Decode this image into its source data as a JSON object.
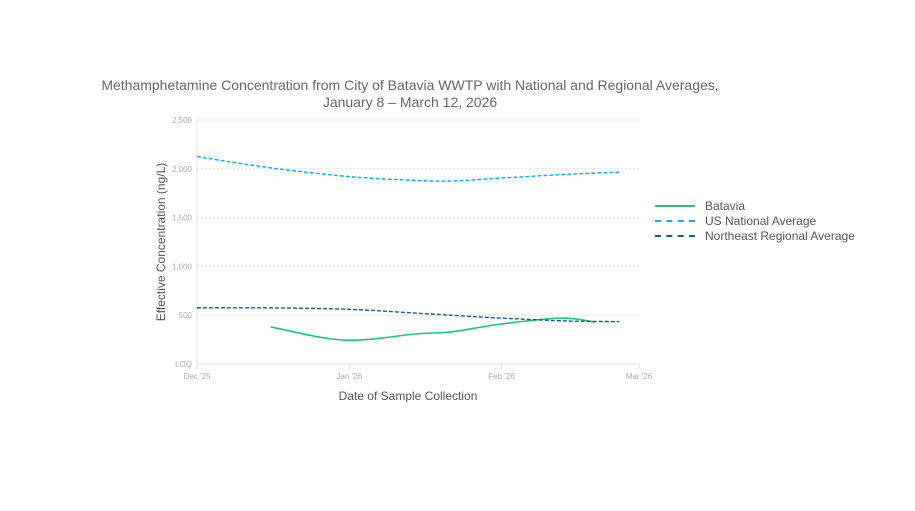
{
  "chart_data": {
    "type": "line",
    "title": "Methamphetamine Concentration from City of Batavia WWTP with National and Regional Averages,",
    "subtitle": "January 8 – March 12, 2026",
    "xlabel": "Date of Sample Collection",
    "ylabel": "Effective Concentration (ng/L)",
    "xlim": [
      "2025-12-01",
      "2026-03-01"
    ],
    "ylim": [
      0,
      2500
    ],
    "x_ticks": [
      {
        "date": "2025-12-01",
        "label": "Dec '25"
      },
      {
        "date": "2026-01-01",
        "label": "Jan '26"
      },
      {
        "date": "2026-02-01",
        "label": "Feb '26"
      },
      {
        "date": "2026-03-01",
        "label": "Mar '26"
      }
    ],
    "y_ticks": [
      {
        "value": 0,
        "label": "LOQ"
      },
      {
        "value": 500,
        "label": "500"
      },
      {
        "value": 1000,
        "label": "1,000"
      },
      {
        "value": 1500,
        "label": "1,500"
      },
      {
        "value": 2000,
        "label": "2,000"
      },
      {
        "value": 2500,
        "label": "2,500"
      }
    ],
    "grid": true,
    "legend_position": "right",
    "series": [
      {
        "name": "Batavia",
        "color": "#1dc47a",
        "style": "solid",
        "x": [
          "2025-12-16",
          "2025-12-31",
          "2026-01-15",
          "2026-01-22",
          "2026-02-01",
          "2026-02-13",
          "2026-02-20"
        ],
        "y": [
          380,
          245,
          310,
          330,
          410,
          470,
          430
        ]
      },
      {
        "name": "US National Average",
        "color": "#1aa3f0",
        "style": "dashed",
        "x": [
          "2025-12-01",
          "2025-12-16",
          "2026-01-01",
          "2026-01-15",
          "2026-01-22",
          "2026-02-01",
          "2026-02-15",
          "2026-02-25"
        ],
        "y": [
          2125,
          2010,
          1920,
          1880,
          1875,
          1905,
          1945,
          1965
        ]
      },
      {
        "name": "Northeast Regional Average",
        "color": "#1b5a8a",
        "style": "dashed",
        "x": [
          "2025-12-01",
          "2025-12-16",
          "2026-01-01",
          "2026-01-15",
          "2026-02-01",
          "2026-02-15",
          "2026-02-25"
        ],
        "y": [
          575,
          575,
          560,
          520,
          470,
          440,
          435
        ]
      }
    ]
  }
}
